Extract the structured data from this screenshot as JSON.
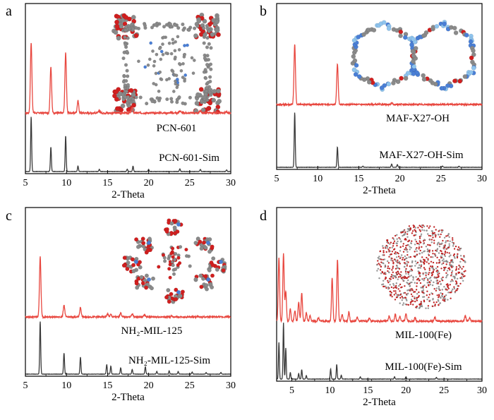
{
  "colors": {
    "experimental": "#e8473f",
    "simulated": "#3a3a3a",
    "axis": "#000000",
    "atom_red": "#d11f1f",
    "atom_gray": "#8a8a8a",
    "atom_blue": "#4a7fd6",
    "atom_light_blue": "#8fc4ee"
  },
  "chart_data": [
    {
      "panel": "a",
      "type": "line",
      "xlabel": "2-Theta",
      "xlim": [
        5,
        30
      ],
      "xticks": [
        5,
        10,
        15,
        20,
        25,
        30
      ],
      "structure_icon": "pcn-601-framework-image",
      "series": [
        {
          "name": "PCN-601",
          "role": "experimental",
          "peaks": [
            {
              "x": 5.7,
              "h": 1.0
            },
            {
              "x": 8.1,
              "h": 0.66
            },
            {
              "x": 9.9,
              "h": 0.86
            },
            {
              "x": 11.4,
              "h": 0.17
            },
            {
              "x": 14.0,
              "h": 0.03
            },
            {
              "x": 18.0,
              "h": 0.08
            },
            {
              "x": 23.8,
              "h": 0.03
            },
            {
              "x": 26.3,
              "h": 0.03
            },
            {
              "x": 29.5,
              "h": 0.02
            }
          ]
        },
        {
          "name": "PCN-601-Sim",
          "role": "simulated",
          "peaks": [
            {
              "x": 5.7,
              "h": 1.0
            },
            {
              "x": 8.1,
              "h": 0.45
            },
            {
              "x": 9.9,
              "h": 0.65
            },
            {
              "x": 11.4,
              "h": 0.1
            },
            {
              "x": 14.0,
              "h": 0.04
            },
            {
              "x": 17.4,
              "h": 0.04
            },
            {
              "x": 18.1,
              "h": 0.1
            },
            {
              "x": 20.0,
              "h": 0.04
            },
            {
              "x": 23.8,
              "h": 0.05
            },
            {
              "x": 26.3,
              "h": 0.04
            },
            {
              "x": 29.5,
              "h": 0.03
            }
          ]
        }
      ]
    },
    {
      "panel": "b",
      "type": "line",
      "xlabel": "2-Theta",
      "xlim": [
        5,
        30
      ],
      "xticks": [
        5,
        10,
        15,
        20,
        25,
        30
      ],
      "structure_icon": "maf-x27-oh-framework-image",
      "series": [
        {
          "name": "MAF-X27-OH",
          "role": "experimental",
          "peaks": [
            {
              "x": 7.2,
              "h": 1.0
            },
            {
              "x": 12.4,
              "h": 0.68
            },
            {
              "x": 19.0,
              "h": 0.02
            }
          ]
        },
        {
          "name": "MAF-X27-OH-Sim",
          "role": "simulated",
          "peaks": [
            {
              "x": 7.2,
              "h": 1.0
            },
            {
              "x": 12.4,
              "h": 0.37
            },
            {
              "x": 15.5,
              "h": 0.02
            },
            {
              "x": 19.0,
              "h": 0.06
            },
            {
              "x": 19.7,
              "h": 0.05
            },
            {
              "x": 25.2,
              "h": 0.02
            },
            {
              "x": 27.2,
              "h": 0.02
            }
          ]
        }
      ]
    },
    {
      "panel": "c",
      "type": "line",
      "xlabel": "2-Theta",
      "xlim": [
        5,
        30
      ],
      "xticks": [
        5,
        10,
        15,
        20,
        25,
        30
      ],
      "structure_icon": "nh2-mil-125-framework-image",
      "series": [
        {
          "name": "NH₂-MIL-125",
          "role": "experimental",
          "peaks": [
            {
              "x": 6.8,
              "h": 1.0
            },
            {
              "x": 9.7,
              "h": 0.2
            },
            {
              "x": 11.7,
              "h": 0.16
            },
            {
              "x": 15.0,
              "h": 0.05
            },
            {
              "x": 15.4,
              "h": 0.04
            },
            {
              "x": 16.6,
              "h": 0.07
            },
            {
              "x": 18.0,
              "h": 0.05
            },
            {
              "x": 19.5,
              "h": 0.04
            },
            {
              "x": 22.8,
              "h": 0.02
            }
          ]
        },
        {
          "name": "NH₂-MIL-125-Sim",
          "role": "simulated",
          "peaks": [
            {
              "x": 6.8,
              "h": 1.0
            },
            {
              "x": 9.7,
              "h": 0.4
            },
            {
              "x": 11.7,
              "h": 0.32
            },
            {
              "x": 14.9,
              "h": 0.18
            },
            {
              "x": 15.4,
              "h": 0.15
            },
            {
              "x": 16.6,
              "h": 0.12
            },
            {
              "x": 18.0,
              "h": 0.09
            },
            {
              "x": 19.6,
              "h": 0.14
            },
            {
              "x": 21.0,
              "h": 0.05
            },
            {
              "x": 22.5,
              "h": 0.06
            },
            {
              "x": 23.6,
              "h": 0.05
            },
            {
              "x": 25.3,
              "h": 0.04
            },
            {
              "x": 27.0,
              "h": 0.03
            },
            {
              "x": 28.8,
              "h": 0.03
            }
          ]
        }
      ]
    },
    {
      "panel": "d",
      "type": "line",
      "xlabel": "2-Theta",
      "xlim": [
        3,
        30
      ],
      "xticks": [
        5,
        10,
        15,
        20,
        25,
        30
      ],
      "structure_icon": "mil-100-fe-framework-image",
      "series": [
        {
          "name": "MIL-100(Fe)",
          "role": "experimental",
          "peaks": [
            {
              "x": 3.3,
              "h": 0.95
            },
            {
              "x": 3.9,
              "h": 1.0
            },
            {
              "x": 4.2,
              "h": 0.45
            },
            {
              "x": 4.8,
              "h": 0.18
            },
            {
              "x": 5.4,
              "h": 0.16
            },
            {
              "x": 5.9,
              "h": 0.28
            },
            {
              "x": 6.3,
              "h": 0.42
            },
            {
              "x": 6.9,
              "h": 0.12
            },
            {
              "x": 7.4,
              "h": 0.08
            },
            {
              "x": 8.5,
              "h": 0.05
            },
            {
              "x": 10.3,
              "h": 0.65
            },
            {
              "x": 11.0,
              "h": 0.92
            },
            {
              "x": 11.6,
              "h": 0.1
            },
            {
              "x": 12.5,
              "h": 0.14
            },
            {
              "x": 13.6,
              "h": 0.06
            },
            {
              "x": 15.2,
              "h": 0.05
            },
            {
              "x": 17.8,
              "h": 0.08
            },
            {
              "x": 18.6,
              "h": 0.1
            },
            {
              "x": 19.2,
              "h": 0.08
            },
            {
              "x": 20.0,
              "h": 0.12
            },
            {
              "x": 21.2,
              "h": 0.05
            },
            {
              "x": 23.8,
              "h": 0.06
            },
            {
              "x": 27.8,
              "h": 0.08
            },
            {
              "x": 28.4,
              "h": 0.05
            }
          ]
        },
        {
          "name": "MIL-100(Fe)-Sim",
          "role": "simulated",
          "peaks": [
            {
              "x": 3.3,
              "h": 0.65
            },
            {
              "x": 3.9,
              "h": 1.0
            },
            {
              "x": 4.2,
              "h": 0.55
            },
            {
              "x": 4.8,
              "h": 0.12
            },
            {
              "x": 5.9,
              "h": 0.1
            },
            {
              "x": 6.3,
              "h": 0.17
            },
            {
              "x": 6.9,
              "h": 0.06
            },
            {
              "x": 10.1,
              "h": 0.18
            },
            {
              "x": 10.9,
              "h": 0.26
            },
            {
              "x": 11.5,
              "h": 0.07
            },
            {
              "x": 14.0,
              "h": 0.04
            },
            {
              "x": 18.5,
              "h": 0.04
            },
            {
              "x": 20.0,
              "h": 0.04
            },
            {
              "x": 24.0,
              "h": 0.03
            }
          ]
        }
      ]
    }
  ]
}
